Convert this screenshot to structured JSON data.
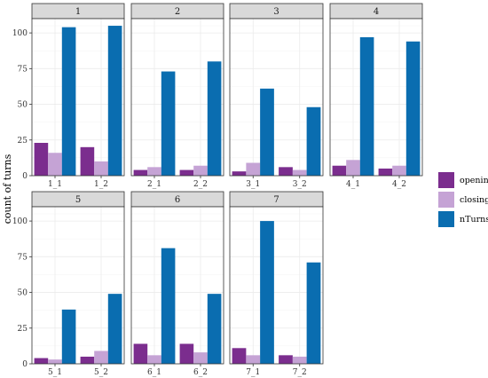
{
  "chart_data": {
    "type": "bar",
    "title": "",
    "xlabel": "",
    "ylabel": "count of turns",
    "ylim": [
      0,
      110
    ],
    "yticks": [
      0,
      25,
      50,
      75,
      100
    ],
    "grid": true,
    "legend_position": "right",
    "series_names": [
      "opening",
      "closing",
      "nTurns"
    ],
    "colors": {
      "opening": "#7B2D8E",
      "closing": "#C5A3D5",
      "nTurns": "#0A6DB0"
    },
    "facets": [
      {
        "label": "1",
        "categories": [
          "1_1",
          "1_2"
        ],
        "series": [
          {
            "name": "opening",
            "values": [
              23,
              20
            ]
          },
          {
            "name": "closing",
            "values": [
              16,
              10
            ]
          },
          {
            "name": "nTurns",
            "values": [
              104,
              105
            ]
          }
        ]
      },
      {
        "label": "2",
        "categories": [
          "2_1",
          "2_2"
        ],
        "series": [
          {
            "name": "opening",
            "values": [
              4,
              4
            ]
          },
          {
            "name": "closing",
            "values": [
              6,
              7
            ]
          },
          {
            "name": "nTurns",
            "values": [
              73,
              80
            ]
          }
        ]
      },
      {
        "label": "3",
        "categories": [
          "3_1",
          "3_2"
        ],
        "series": [
          {
            "name": "opening",
            "values": [
              3,
              6
            ]
          },
          {
            "name": "closing",
            "values": [
              9,
              4
            ]
          },
          {
            "name": "nTurns",
            "values": [
              61,
              48
            ]
          }
        ]
      },
      {
        "label": "4",
        "categories": [
          "4_1",
          "4_2"
        ],
        "series": [
          {
            "name": "opening",
            "values": [
              7,
              5
            ]
          },
          {
            "name": "closing",
            "values": [
              11,
              7
            ]
          },
          {
            "name": "nTurns",
            "values": [
              97,
              94
            ]
          }
        ]
      },
      {
        "label": "5",
        "categories": [
          "5_1",
          "5_2"
        ],
        "series": [
          {
            "name": "opening",
            "values": [
              4,
              5
            ]
          },
          {
            "name": "closing",
            "values": [
              3,
              9
            ]
          },
          {
            "name": "nTurns",
            "values": [
              38,
              49
            ]
          }
        ]
      },
      {
        "label": "6",
        "categories": [
          "6_1",
          "6_2"
        ],
        "series": [
          {
            "name": "opening",
            "values": [
              14,
              14
            ]
          },
          {
            "name": "closing",
            "values": [
              6,
              8
            ]
          },
          {
            "name": "nTurns",
            "values": [
              81,
              49
            ]
          }
        ]
      },
      {
        "label": "7",
        "categories": [
          "7_1",
          "7_2"
        ],
        "series": [
          {
            "name": "opening",
            "values": [
              11,
              6
            ]
          },
          {
            "name": "closing",
            "values": [
              6,
              5
            ]
          },
          {
            "name": "nTurns",
            "values": [
              100,
              71
            ]
          }
        ]
      }
    ]
  }
}
